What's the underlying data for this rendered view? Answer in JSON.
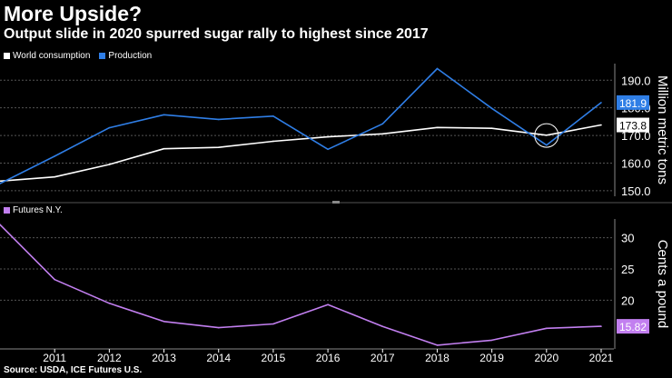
{
  "header": {
    "title": "More Upside?",
    "subtitle": "Output slide in 2020 spurred sugar rally to highest since 2017"
  },
  "legend_top": [
    {
      "label": "World consumption",
      "color": "#ffffff"
    },
    {
      "label": "Production",
      "color": "#2f7ee6"
    }
  ],
  "legend_bottom": [
    {
      "label": "Futures N.Y.",
      "color": "#c27ff0"
    }
  ],
  "source": "Source: USDA, ICE Futures U.S.",
  "chart_data": [
    {
      "type": "line",
      "ylabel": "Million metric tons",
      "ylim": [
        148,
        196
      ],
      "yticks": [
        "150.0",
        "160.0",
        "170.0",
        "180.0",
        "190.0"
      ],
      "x": [
        2010,
        2011,
        2012,
        2013,
        2014,
        2015,
        2016,
        2017,
        2018,
        2019,
        2020,
        2021
      ],
      "grid": true,
      "series": [
        {
          "name": "World consumption",
          "color": "#ffffff",
          "values": [
            153.5,
            155,
            159.5,
            165.2,
            165.7,
            167.9,
            169.5,
            170.6,
            172.9,
            172.6,
            170.1,
            173.8
          ],
          "end_label": "173.8"
        },
        {
          "name": "Production",
          "color": "#2f7ee6",
          "values": [
            152.6,
            162.5,
            172.8,
            177.5,
            175.8,
            177,
            165,
            174.2,
            194.2,
            179.8,
            166.5,
            181.9
          ],
          "end_label": "181.9"
        }
      ],
      "annotation": {
        "type": "circle",
        "x": 2020,
        "y": 170
      }
    },
    {
      "type": "line",
      "ylabel": "Cents a pound",
      "ylim": [
        12.2,
        33
      ],
      "yticks": [
        "20",
        "25",
        "30"
      ],
      "x": [
        2010,
        2011,
        2012,
        2013,
        2014,
        2015,
        2016,
        2017,
        2018,
        2019,
        2020,
        2021
      ],
      "xticks": [
        "2011",
        "2012",
        "2013",
        "2014",
        "2015",
        "2016",
        "2017",
        "2018",
        "2019",
        "2020",
        "2021"
      ],
      "grid": true,
      "series": [
        {
          "name": "Futures N.Y.",
          "color": "#c27ff0",
          "values": [
            32.1,
            23.3,
            19.5,
            16.6,
            15.6,
            16.2,
            19.3,
            15.8,
            12.8,
            13.6,
            15.5,
            15.82
          ],
          "end_label": "15.82"
        }
      ]
    }
  ]
}
